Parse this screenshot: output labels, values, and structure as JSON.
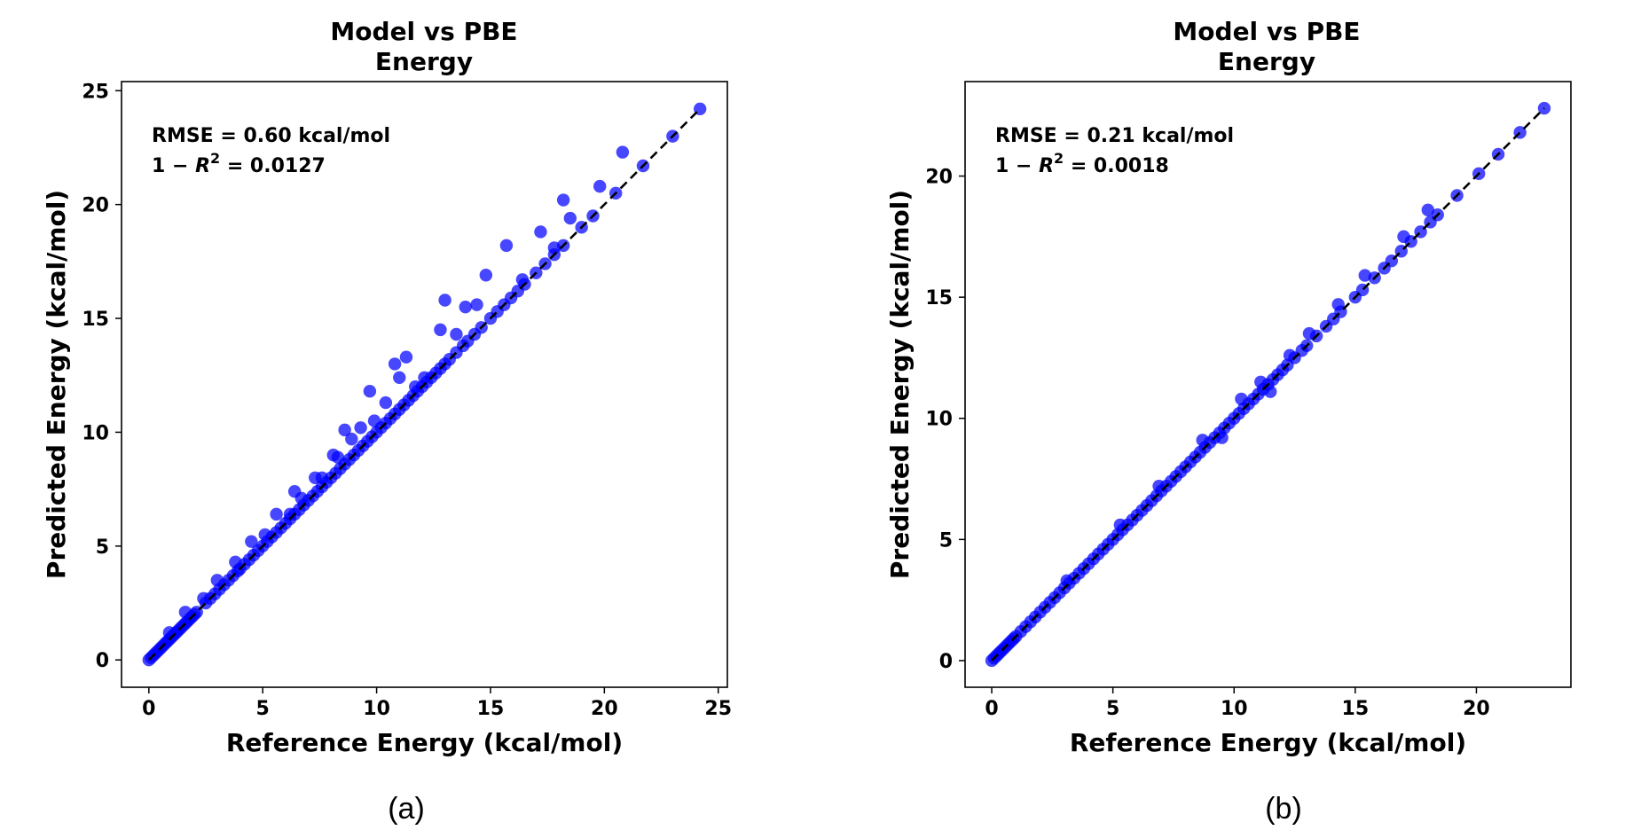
{
  "chart_data": [
    {
      "type": "scatter",
      "title": "Model vs PBE",
      "subtitle": "Energy",
      "xlabel": "Reference Energy (kcal/mol)",
      "ylabel": "Predicted Energy (kcal/mol)",
      "xlim": [
        -1.2,
        25.4
      ],
      "ylim": [
        -1.2,
        25.4
      ],
      "xticks": [
        0,
        5,
        10,
        15,
        20,
        25
      ],
      "yticks": [
        0,
        5,
        10,
        15,
        20,
        25
      ],
      "annotation_rmse": "RMSE = 0.60 kcal/mol",
      "annotation_r2_prefix": "1 − ",
      "annotation_r2_var": "R",
      "annotation_r2_sup": "2",
      "annotation_r2_value": " = 0.0127",
      "caption": "(a)",
      "marker_color": "#0000ff",
      "line_color": "#000000",
      "series": [
        {
          "name": "predictions",
          "x": [
            0.0,
            0.1,
            0.2,
            0.3,
            0.4,
            0.5,
            0.6,
            0.7,
            0.8,
            0.9,
            1.0,
            1.1,
            1.2,
            1.3,
            1.4,
            1.5,
            1.6,
            1.7,
            1.8,
            1.9,
            2.0,
            2.1,
            2.5,
            2.7,
            2.9,
            3.1,
            3.3,
            3.5,
            3.7,
            3.9,
            4.0,
            4.2,
            4.4,
            4.6,
            4.8,
            5.0,
            5.2,
            5.4,
            5.6,
            5.8,
            6.0,
            6.2,
            6.4,
            6.6,
            6.8,
            7.0,
            7.2,
            7.4,
            7.6,
            7.8,
            8.0,
            8.2,
            8.4,
            8.6,
            8.8,
            9.0,
            9.2,
            9.4,
            9.6,
            9.8,
            10.0,
            10.2,
            10.4,
            10.6,
            10.8,
            11.0,
            11.2,
            11.4,
            11.6,
            11.8,
            12.0,
            12.2,
            12.4,
            12.6,
            12.8,
            13.0,
            13.2,
            13.5,
            13.8,
            14.0,
            14.3,
            14.6,
            15.0,
            15.3,
            15.6,
            15.9,
            16.2,
            16.5,
            17.0,
            17.4,
            17.8,
            18.2,
            19.0,
            19.5,
            20.5,
            21.7,
            23.0,
            24.2,
            0.9,
            1.6,
            2.4,
            3.0,
            3.8,
            4.5,
            5.1,
            5.6,
            6.2,
            6.4,
            6.7,
            7.3,
            7.6,
            8.1,
            8.3,
            8.6,
            8.9,
            9.3,
            9.7,
            9.9,
            10.4,
            10.8,
            11.0,
            11.3,
            11.7,
            12.1,
            12.8,
            13.0,
            13.5,
            13.9,
            14.4,
            14.8,
            15.7,
            16.4,
            17.2,
            17.8,
            18.2,
            18.5,
            19.8,
            20.8
          ],
          "y": [
            0.0,
            0.1,
            0.2,
            0.3,
            0.4,
            0.5,
            0.6,
            0.7,
            0.8,
            0.9,
            1.0,
            1.1,
            1.2,
            1.3,
            1.4,
            1.5,
            1.6,
            1.7,
            1.8,
            1.9,
            2.0,
            2.1,
            2.5,
            2.7,
            2.9,
            3.1,
            3.3,
            3.5,
            3.7,
            3.9,
            4.0,
            4.2,
            4.4,
            4.6,
            4.8,
            5.0,
            5.2,
            5.4,
            5.6,
            5.8,
            6.0,
            6.2,
            6.4,
            6.6,
            6.8,
            7.0,
            7.2,
            7.4,
            7.6,
            7.8,
            8.0,
            8.2,
            8.4,
            8.6,
            8.8,
            9.0,
            9.2,
            9.4,
            9.6,
            9.8,
            10.0,
            10.2,
            10.4,
            10.6,
            10.8,
            11.0,
            11.2,
            11.4,
            11.6,
            11.8,
            12.0,
            12.2,
            12.4,
            12.6,
            12.8,
            13.0,
            13.2,
            13.5,
            13.8,
            14.0,
            14.3,
            14.6,
            15.0,
            15.3,
            15.6,
            15.9,
            16.2,
            16.5,
            17.0,
            17.4,
            17.8,
            18.2,
            19.0,
            19.5,
            20.5,
            21.7,
            23.0,
            24.2,
            1.2,
            2.1,
            2.7,
            3.5,
            4.3,
            5.2,
            5.5,
            6.4,
            6.4,
            7.4,
            7.1,
            8.0,
            8.0,
            9.0,
            8.9,
            10.1,
            9.7,
            10.2,
            11.8,
            10.5,
            11.3,
            13.0,
            12.4,
            13.3,
            12.0,
            12.4,
            14.5,
            15.8,
            14.3,
            15.5,
            15.6,
            16.9,
            18.2,
            16.7,
            18.8,
            18.1,
            20.2,
            19.4,
            20.8,
            22.3
          ]
        }
      ]
    },
    {
      "type": "scatter",
      "title": "Model vs PBE",
      "subtitle": "Energy",
      "xlabel": "Reference Energy (kcal/mol)",
      "ylabel": "Predicted Energy (kcal/mol)",
      "xlim": [
        -1.1,
        23.9
      ],
      "ylim": [
        -1.1,
        23.9
      ],
      "xticks": [
        0,
        5,
        10,
        15,
        20
      ],
      "yticks": [
        0,
        5,
        10,
        15,
        20
      ],
      "annotation_rmse": "RMSE = 0.21 kcal/mol",
      "annotation_r2_prefix": "1 − ",
      "annotation_r2_var": "R",
      "annotation_r2_sup": "2",
      "annotation_r2_value": " = 0.0018",
      "caption": "(b)",
      "marker_color": "#0000ff",
      "line_color": "#000000",
      "series": [
        {
          "name": "predictions",
          "x": [
            0.0,
            0.1,
            0.2,
            0.3,
            0.4,
            0.5,
            0.6,
            0.7,
            0.8,
            0.9,
            1.0,
            1.2,
            1.4,
            1.6,
            1.8,
            2.0,
            2.2,
            2.4,
            2.6,
            2.8,
            3.0,
            3.2,
            3.4,
            3.6,
            3.8,
            4.0,
            4.2,
            4.4,
            4.6,
            4.8,
            5.0,
            5.2,
            5.4,
            5.6,
            5.8,
            6.0,
            6.2,
            6.4,
            6.6,
            6.8,
            7.0,
            7.2,
            7.4,
            7.6,
            7.8,
            8.0,
            8.2,
            8.4,
            8.6,
            8.8,
            9.0,
            9.2,
            9.4,
            9.6,
            9.8,
            10.0,
            10.2,
            10.4,
            10.6,
            10.8,
            11.0,
            11.2,
            11.4,
            11.6,
            11.8,
            12.0,
            12.2,
            12.5,
            12.8,
            13.0,
            13.4,
            13.8,
            14.1,
            14.4,
            15.0,
            15.3,
            15.8,
            16.2,
            16.5,
            16.9,
            17.3,
            17.7,
            18.1,
            18.4,
            19.2,
            20.1,
            20.9,
            21.8,
            22.8,
            3.1,
            5.3,
            6.9,
            8.7,
            9.5,
            10.3,
            11.1,
            11.5,
            12.3,
            13.1,
            14.3,
            15.4,
            17.0,
            18.0
          ],
          "y": [
            0.0,
            0.1,
            0.2,
            0.3,
            0.4,
            0.5,
            0.6,
            0.7,
            0.8,
            0.9,
            1.0,
            1.2,
            1.4,
            1.6,
            1.8,
            2.0,
            2.2,
            2.4,
            2.6,
            2.8,
            3.0,
            3.2,
            3.4,
            3.6,
            3.8,
            4.0,
            4.2,
            4.4,
            4.6,
            4.8,
            5.0,
            5.2,
            5.4,
            5.6,
            5.8,
            6.0,
            6.2,
            6.4,
            6.6,
            6.8,
            7.0,
            7.2,
            7.4,
            7.6,
            7.8,
            8.0,
            8.2,
            8.4,
            8.6,
            8.8,
            9.0,
            9.2,
            9.4,
            9.6,
            9.8,
            10.0,
            10.2,
            10.4,
            10.6,
            10.8,
            11.0,
            11.2,
            11.4,
            11.6,
            11.8,
            12.0,
            12.2,
            12.5,
            12.8,
            13.0,
            13.4,
            13.8,
            14.1,
            14.4,
            15.0,
            15.3,
            15.8,
            16.2,
            16.5,
            16.9,
            17.3,
            17.7,
            18.1,
            18.4,
            19.2,
            20.1,
            20.9,
            21.8,
            22.8,
            3.3,
            5.6,
            7.2,
            9.1,
            9.2,
            10.8,
            11.5,
            11.1,
            12.6,
            13.5,
            14.7,
            15.9,
            17.5,
            18.6
          ]
        }
      ]
    }
  ]
}
